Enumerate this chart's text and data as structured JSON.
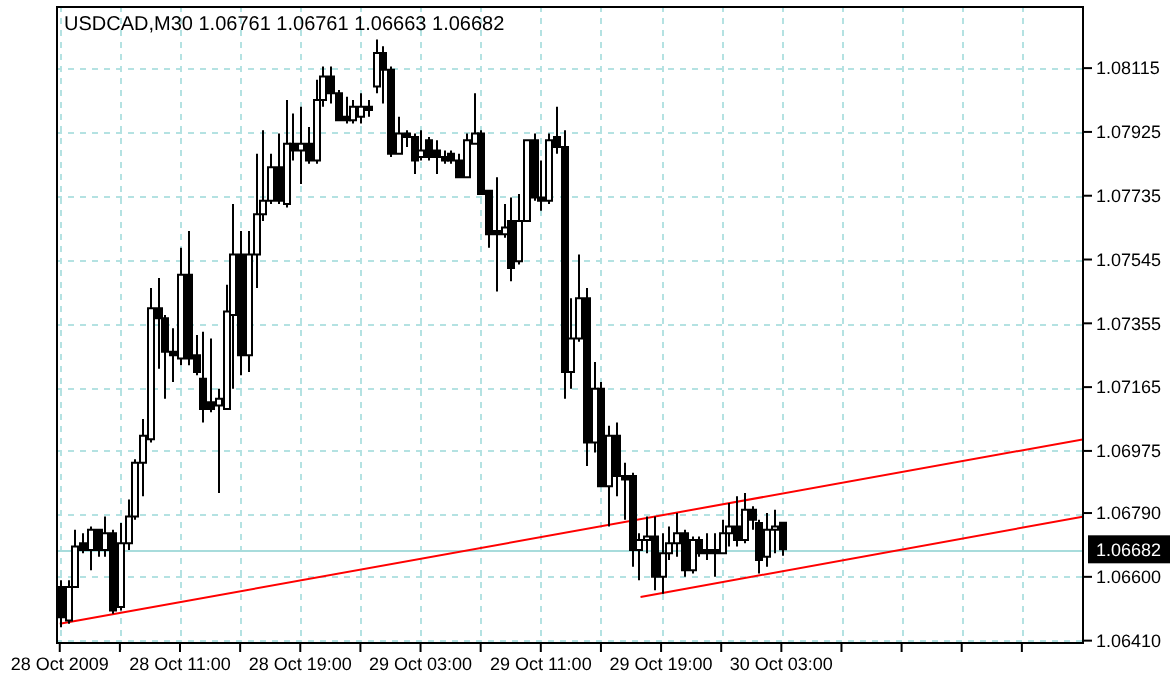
{
  "chart_data": {
    "type": "candlestick",
    "title": "USDCAD,M30  1.06761 1.06761 1.06663 1.06682",
    "color": "#000000",
    "x": [
      "2009-10-28T03:00",
      "2009-10-28T03:30",
      "2009-10-28T04:00",
      "2009-10-28T04:30",
      "2009-10-28T05:00",
      "2009-10-28T05:30",
      "2009-10-28T06:00",
      "2009-10-28T06:30",
      "2009-10-28T07:00",
      "2009-10-28T07:30",
      "2009-10-28T08:00",
      "2009-10-28T08:30",
      "2009-10-28T09:00",
      "2009-10-28T09:30",
      "2009-10-28T10:00",
      "2009-10-28T10:30",
      "2009-10-28T11:00",
      "2009-10-28T11:30",
      "2009-10-28T12:00",
      "2009-10-28T12:30",
      "2009-10-28T13:00",
      "2009-10-28T13:30",
      "2009-10-28T14:00",
      "2009-10-28T14:30",
      "2009-10-28T15:00",
      "2009-10-28T15:30",
      "2009-10-28T16:00",
      "2009-10-28T16:30",
      "2009-10-28T17:00",
      "2009-10-28T17:30",
      "2009-10-28T18:00",
      "2009-10-28T18:30",
      "2009-10-28T19:00",
      "2009-10-28T19:30",
      "2009-10-28T20:00",
      "2009-10-28T20:30",
      "2009-10-28T21:00",
      "2009-10-28T21:30",
      "2009-10-28T22:00",
      "2009-10-28T22:30",
      "2009-10-28T23:00",
      "2009-10-28T23:30",
      "2009-10-29T00:00",
      "2009-10-29T00:30",
      "2009-10-29T01:00",
      "2009-10-29T01:30",
      "2009-10-29T02:00",
      "2009-10-29T02:30",
      "2009-10-29T03:00",
      "2009-10-29T03:30",
      "2009-10-29T04:00",
      "2009-10-29T04:30",
      "2009-10-29T05:00",
      "2009-10-29T05:30",
      "2009-10-29T06:00",
      "2009-10-29T06:30",
      "2009-10-29T07:00",
      "2009-10-29T07:30",
      "2009-10-29T08:00",
      "2009-10-29T08:30",
      "2009-10-29T09:00",
      "2009-10-29T09:30",
      "2009-10-29T10:00",
      "2009-10-29T10:30",
      "2009-10-29T11:00",
      "2009-10-29T11:30",
      "2009-10-29T12:00",
      "2009-10-29T12:30",
      "2009-10-29T13:00",
      "2009-10-29T13:30",
      "2009-10-29T14:00",
      "2009-10-29T14:30",
      "2009-10-29T15:00",
      "2009-10-29T15:30",
      "2009-10-29T16:00",
      "2009-10-29T16:30",
      "2009-10-29T17:00",
      "2009-10-29T17:30",
      "2009-10-29T18:00",
      "2009-10-29T18:30",
      "2009-10-29T19:00",
      "2009-10-29T19:30",
      "2009-10-29T20:00",
      "2009-10-29T20:30",
      "2009-10-29T21:00",
      "2009-10-29T21:30",
      "2009-10-29T22:00",
      "2009-10-29T22:30",
      "2009-10-29T23:00",
      "2009-10-29T23:30",
      "2009-10-30T00:00",
      "2009-10-30T00:30",
      "2009-10-30T01:00",
      "2009-10-30T01:30",
      "2009-10-30T02:00",
      "2009-10-30T02:30",
      "2009-10-30T03:00"
    ],
    "ohlc": [
      [
        1.0657,
        1.0659,
        1.0645,
        1.0648
      ],
      [
        1.0647,
        1.0659,
        1.0646,
        1.0657
      ],
      [
        1.0657,
        1.0674,
        1.0657,
        1.0669
      ],
      [
        1.067,
        1.0673,
        1.0667,
        1.0668
      ],
      [
        1.0668,
        1.0675,
        1.0662,
        1.0674
      ],
      [
        1.0674,
        1.0674,
        1.0666,
        1.0668
      ],
      [
        1.0668,
        1.0678,
        1.0666,
        1.0673
      ],
      [
        1.0673,
        1.0674,
        1.0649,
        1.065
      ],
      [
        1.0651,
        1.0676,
        1.065,
        1.067
      ],
      [
        1.067,
        1.0683,
        1.0668,
        1.0678
      ],
      [
        1.0678,
        1.0695,
        1.0677,
        1.0694
      ],
      [
        1.0694,
        1.0707,
        1.0684,
        1.0702
      ],
      [
        1.0701,
        1.0746,
        1.07,
        1.074
      ],
      [
        1.074,
        1.0749,
        1.0722,
        1.0737
      ],
      [
        1.0737,
        1.0738,
        1.0713,
        1.0727
      ],
      [
        1.0727,
        1.0734,
        1.0718,
        1.0726
      ],
      [
        1.0725,
        1.0758,
        1.0723,
        1.075
      ],
      [
        1.075,
        1.0763,
        1.0723,
        1.0725
      ],
      [
        1.0726,
        1.0732,
        1.072,
        1.0721
      ],
      [
        1.0719,
        1.0733,
        1.0706,
        1.071
      ],
      [
        1.0712,
        1.0731,
        1.0709,
        1.071
      ],
      [
        1.0711,
        1.0716,
        1.0685,
        1.0713
      ],
      [
        1.071,
        1.0747,
        1.071,
        1.0739
      ],
      [
        1.0738,
        1.0771,
        1.0716,
        1.0756
      ],
      [
        1.0756,
        1.0763,
        1.072,
        1.0726
      ],
      [
        1.0726,
        1.0763,
        1.0721,
        1.0756
      ],
      [
        1.0756,
        1.0786,
        1.0746,
        1.0768
      ],
      [
        1.0768,
        1.0793,
        1.0766,
        1.0772
      ],
      [
        1.0772,
        1.0786,
        1.0771,
        1.0782
      ],
      [
        1.0782,
        1.0792,
        1.0771,
        1.0772
      ],
      [
        1.0771,
        1.0802,
        1.077,
        1.0789
      ],
      [
        1.0789,
        1.0798,
        1.0784,
        1.0787
      ],
      [
        1.0787,
        1.08,
        1.0777,
        1.0789
      ],
      [
        1.0789,
        1.0794,
        1.0783,
        1.0784
      ],
      [
        1.0784,
        1.0808,
        1.0783,
        1.0802
      ],
      [
        1.0802,
        1.0812,
        1.08,
        1.0809
      ],
      [
        1.0809,
        1.0812,
        1.0801,
        1.0804
      ],
      [
        1.0804,
        1.0805,
        1.0796,
        1.0796
      ],
      [
        1.0797,
        1.0803,
        1.0795,
        1.0796
      ],
      [
        1.0796,
        1.0802,
        1.0795,
        1.08
      ],
      [
        1.0797,
        1.0804,
        1.0795,
        1.08
      ],
      [
        1.08,
        1.0802,
        1.0797,
        1.0799
      ],
      [
        1.0806,
        1.082,
        1.0804,
        1.0816
      ],
      [
        1.0816,
        1.0818,
        1.0801,
        1.0811
      ],
      [
        1.0811,
        1.0812,
        1.0785,
        1.0786
      ],
      [
        1.0786,
        1.0797,
        1.0786,
        1.0792
      ],
      [
        1.0792,
        1.0793,
        1.0788,
        1.0791
      ],
      [
        1.0791,
        1.0792,
        1.078,
        1.0784
      ],
      [
        1.0785,
        1.0793,
        1.0784,
        1.0787
      ],
      [
        1.079,
        1.0791,
        1.0784,
        1.0785
      ],
      [
        1.0787,
        1.079,
        1.078,
        1.0785
      ],
      [
        1.0785,
        1.0787,
        1.0783,
        1.0784
      ],
      [
        1.0786,
        1.0787,
        1.0783,
        1.0784
      ],
      [
        1.0784,
        1.0786,
        1.0779,
        1.0779
      ],
      [
        1.0779,
        1.0792,
        1.0779,
        1.079
      ],
      [
        1.0789,
        1.0804,
        1.0789,
        1.0792
      ],
      [
        1.0792,
        1.0793,
        1.0774,
        1.0774
      ],
      [
        1.0775,
        1.0775,
        1.0758,
        1.0762
      ],
      [
        1.0763,
        1.0779,
        1.0745,
        1.0762
      ],
      [
        1.0762,
        1.0771,
        1.0761,
        1.0764
      ],
      [
        1.0766,
        1.0773,
        1.0748,
        1.0752
      ],
      [
        1.0754,
        1.0774,
        1.0753,
        1.0766
      ],
      [
        1.0766,
        1.079,
        1.0766,
        1.079
      ],
      [
        1.079,
        1.0792,
        1.0772,
        1.0773
      ],
      [
        1.0773,
        1.0784,
        1.0769,
        1.0772
      ],
      [
        1.0772,
        1.0792,
        1.0771,
        1.079
      ],
      [
        1.0791,
        1.08,
        1.0786,
        1.0788
      ],
      [
        1.0788,
        1.0793,
        1.0713,
        1.0721
      ],
      [
        1.0721,
        1.0743,
        1.0716,
        1.0731
      ],
      [
        1.0731,
        1.0756,
        1.073,
        1.0743
      ],
      [
        1.0743,
        1.0746,
        1.0693,
        1.07
      ],
      [
        1.07,
        1.0724,
        1.0697,
        1.0716
      ],
      [
        1.0716,
        1.0718,
        1.0687,
        1.0687
      ],
      [
        1.0687,
        1.0705,
        1.0675,
        1.0702
      ],
      [
        1.0702,
        1.0706,
        1.0684,
        1.069
      ],
      [
        1.069,
        1.0694,
        1.0677,
        1.0689
      ],
      [
        1.069,
        1.0691,
        1.0663,
        1.0668
      ],
      [
        1.0668,
        1.0673,
        1.0659,
        1.0671
      ],
      [
        1.0671,
        1.0678,
        1.0667,
        1.0672
      ],
      [
        1.0672,
        1.0678,
        1.0656,
        1.066
      ],
      [
        1.066,
        1.0673,
        1.0655,
        1.0667
      ],
      [
        1.0667,
        1.0675,
        1.0665,
        1.067
      ],
      [
        1.067,
        1.0679,
        1.0666,
        1.0673
      ],
      [
        1.0673,
        1.0674,
        1.066,
        1.0662
      ],
      [
        1.0662,
        1.0672,
        1.0661,
        1.0671
      ],
      [
        1.0671,
        1.0672,
        1.0666,
        1.0667
      ],
      [
        1.0668,
        1.0673,
        1.0665,
        1.0667
      ],
      [
        1.0668,
        1.0673,
        1.066,
        1.0667
      ],
      [
        1.0667,
        1.0677,
        1.0667,
        1.0673
      ],
      [
        1.0673,
        1.0682,
        1.0669,
        1.0675
      ],
      [
        1.0675,
        1.0684,
        1.0669,
        1.0671
      ],
      [
        1.0671,
        1.0685,
        1.067,
        1.068
      ],
      [
        1.068,
        1.0681,
        1.0674,
        1.0677
      ],
      [
        1.0676,
        1.0677,
        1.0661,
        1.0665
      ],
      [
        1.0666,
        1.0679,
        1.0663,
        1.0674
      ],
      [
        1.0674,
        1.068,
        1.0667,
        1.0675
      ],
      [
        1.06761,
        1.06761,
        1.06663,
        1.06682
      ]
    ],
    "series": [
      {
        "type": "line",
        "color": "#ff0000",
        "x": [
          "2009-10-28T03:00",
          "2009-10-30T23:08"
        ],
        "values": [
          1.0646,
          1.0701
        ]
      },
      {
        "type": "line",
        "color": "#ff0000",
        "x": [
          "2009-10-29T17:38",
          "2009-10-30T23:08"
        ],
        "values": [
          1.0654,
          1.0678
        ]
      }
    ],
    "xlim": [
      "2009-10-28T02:45",
      "2009-10-30T23:08"
    ],
    "ylim": [
      1.064,
      1.083
    ],
    "xticks": [
      {
        "value": "2009-10-28T03:00",
        "label": "28 Oct 2009"
      },
      {
        "value": "2009-10-28T07:00",
        "label": null
      },
      {
        "value": "2009-10-28T11:00",
        "label": "28 Oct 11:00"
      },
      {
        "value": "2009-10-28T15:00",
        "label": null
      },
      {
        "value": "2009-10-28T19:00",
        "label": "28 Oct 19:00"
      },
      {
        "value": "2009-10-28T23:00",
        "label": null
      },
      {
        "value": "2009-10-29T03:00",
        "label": "29 Oct 03:00"
      },
      {
        "value": "2009-10-29T07:00",
        "label": null
      },
      {
        "value": "2009-10-29T11:00",
        "label": "29 Oct 11:00"
      },
      {
        "value": "2009-10-29T15:00",
        "label": null
      },
      {
        "value": "2009-10-29T19:00",
        "label": "29 Oct 19:00"
      },
      {
        "value": "2009-10-29T23:00",
        "label": null
      },
      {
        "value": "2009-10-30T03:00",
        "label": "30 Oct 03:00"
      },
      {
        "value": "2009-10-30T07:00",
        "label": null
      },
      {
        "value": "2009-10-30T11:00",
        "label": null
      },
      {
        "value": "2009-10-30T15:00",
        "label": null
      },
      {
        "value": "2009-10-30T19:00",
        "label": null
      }
    ],
    "yticks": [
      {
        "value": 1.0641,
        "label": "1.06410"
      },
      {
        "value": 1.066,
        "label": "1.06600"
      },
      {
        "value": 1.0679,
        "label": "1.06790"
      },
      1.06975,
      1.07165,
      1.07355,
      1.07545,
      1.07735,
      1.07925,
      1.08115
    ],
    "grid": true,
    "ref_lines": [
      {
        "axis": "y",
        "value": 1.06682,
        "label": "1.06682",
        "color": "#a8dcdc"
      }
    ]
  }
}
